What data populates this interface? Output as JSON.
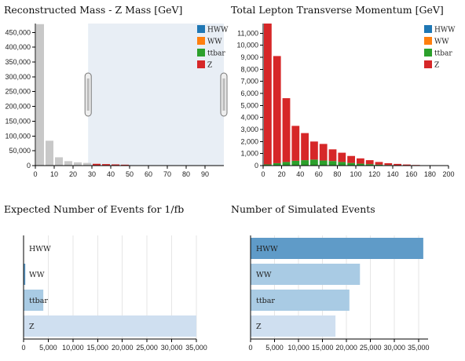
{
  "colors": {
    "HWW": "#1f77b4",
    "WW": "#ff7f0e",
    "ttbar": "#2ca02c",
    "Z": "#d62728",
    "gray": "#c8c8c8",
    "brush": "#e8eef5",
    "hbar_light": "#cfdff0",
    "hbar_mid": "#a9cbe4",
    "hbar_dark": "#5f9bc8"
  },
  "chart_data": [
    {
      "type": "bar",
      "title": "Reconstructed Mass - Z Mass [GeV]",
      "xlim": [
        0,
        100
      ],
      "ylim": [
        0,
        480000
      ],
      "xticks": [
        0,
        10,
        20,
        30,
        40,
        50,
        60,
        70,
        80,
        90
      ],
      "yticks": [
        0,
        50000,
        100000,
        150000,
        200000,
        250000,
        300000,
        350000,
        400000,
        450000
      ],
      "ytick_labels": [
        "0",
        "50,000",
        "100,000",
        "150,000",
        "200,000",
        "250,000",
        "300,000",
        "350,000",
        "400,000",
        "450,000"
      ],
      "bin_width": 5,
      "bins": [
        0,
        5,
        10,
        15,
        20,
        25,
        30,
        35,
        40,
        45
      ],
      "values": [
        478000,
        84000,
        28000,
        15000,
        11000,
        9000,
        6000,
        5000,
        4000,
        3000
      ],
      "brush_range": [
        28,
        100
      ],
      "legend": [
        "HWW",
        "WW",
        "ttbar",
        "Z"
      ],
      "legend_position": "top-right"
    },
    {
      "type": "bar",
      "stacked": true,
      "title": "Total Lepton Transverse Momentum [GeV]",
      "xlim": [
        0,
        200
      ],
      "ylim": [
        0,
        11800
      ],
      "xticks": [
        0,
        20,
        40,
        60,
        80,
        100,
        120,
        140,
        160,
        180,
        200
      ],
      "yticks": [
        0,
        1000,
        2000,
        3000,
        4000,
        5000,
        6000,
        7000,
        8000,
        9000,
        10000,
        11000
      ],
      "ytick_labels": [
        "0",
        "1,000",
        "2,000",
        "3,000",
        "4,000",
        "5,000",
        "6,000",
        "7,000",
        "8,000",
        "9,000",
        "10,000",
        "11,000"
      ],
      "bin_width": 10,
      "bins": [
        0,
        10,
        20,
        30,
        40,
        50,
        60,
        70,
        80,
        90,
        100,
        110,
        120,
        130,
        140,
        150,
        160,
        170,
        180,
        190
      ],
      "series": [
        {
          "name": "HWW",
          "values": [
            0,
            0,
            0,
            0,
            0,
            0,
            0,
            0,
            0,
            0,
            0,
            0,
            0,
            0,
            0,
            0,
            0,
            0,
            0,
            0
          ]
        },
        {
          "name": "WW",
          "values": [
            0,
            0,
            0,
            0,
            0,
            0,
            0,
            0,
            0,
            0,
            0,
            0,
            0,
            0,
            0,
            0,
            0,
            0,
            0,
            0
          ]
        },
        {
          "name": "ttbar",
          "values": [
            100,
            200,
            300,
            400,
            450,
            500,
            420,
            380,
            300,
            220,
            160,
            120,
            80,
            50,
            30,
            20,
            10,
            5,
            0,
            0
          ]
        },
        {
          "name": "Z",
          "values": [
            11700,
            8900,
            5300,
            2900,
            2250,
            1500,
            1380,
            970,
            770,
            580,
            440,
            330,
            220,
            150,
            110,
            70,
            40,
            20,
            10,
            5
          ]
        }
      ],
      "legend": [
        "HWW",
        "WW",
        "ttbar",
        "Z"
      ],
      "legend_position": "top-right"
    },
    {
      "type": "bar",
      "orientation": "horizontal",
      "title": "Expected Number of Events for 1/fb",
      "categories": [
        "HWW",
        "WW",
        "ttbar",
        "Z"
      ],
      "values": [
        50,
        350,
        4000,
        35000
      ],
      "xlim": [
        0,
        35000
      ],
      "xticks": [
        0,
        5000,
        10000,
        15000,
        20000,
        25000,
        30000,
        35000
      ],
      "xtick_labels": [
        "0",
        "5,000",
        "10,000",
        "15,000",
        "20,000",
        "25,000",
        "30,000",
        "35,000"
      ]
    },
    {
      "type": "bar",
      "orientation": "horizontal",
      "title": "Number of Simulated Events",
      "categories": [
        "HWW",
        "WW",
        "ttbar",
        "Z"
      ],
      "values": [
        36000,
        22800,
        20600,
        17700
      ],
      "xlim": [
        0,
        37000
      ],
      "xticks": [
        0,
        5000,
        10000,
        15000,
        20000,
        25000,
        30000,
        35000
      ],
      "xtick_labels": [
        "0",
        "5,000",
        "10,000",
        "15,000",
        "20,000",
        "25,000",
        "30,000",
        "35,000"
      ]
    }
  ]
}
